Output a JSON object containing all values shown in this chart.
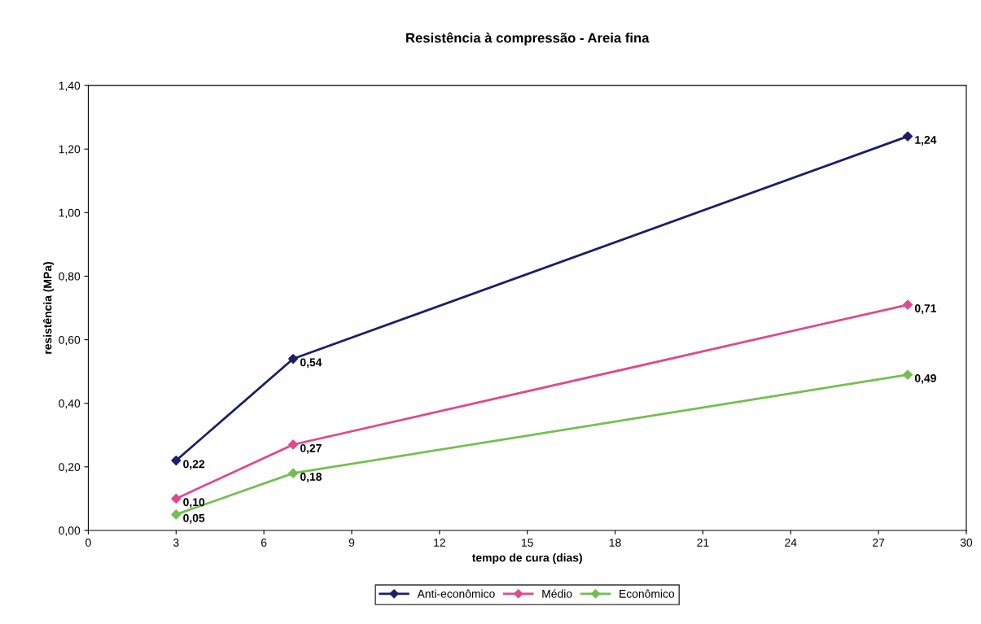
{
  "chart_data": {
    "type": "line",
    "title": "Resistência à compressão - Areia fina",
    "xlabel": "tempo de cura (dias)",
    "ylabel": "resistência (MPa)",
    "x": [
      3,
      7,
      28
    ],
    "series": [
      {
        "name": "Anti-econômico",
        "color": "#1c1f66",
        "values": [
          0.22,
          0.54,
          1.24
        ],
        "value_labels": [
          "0,22",
          "0,54",
          "1,24"
        ]
      },
      {
        "name": "Médio",
        "color": "#e0488e",
        "values": [
          0.1,
          0.27,
          0.71
        ],
        "value_labels": [
          "0,10",
          "0,27",
          "0,71"
        ]
      },
      {
        "name": "Econômico",
        "color": "#72c04e",
        "values": [
          0.05,
          0.18,
          0.49
        ],
        "value_labels": [
          "0,05",
          "0,18",
          "0,49"
        ]
      }
    ],
    "xlim": [
      0,
      30
    ],
    "xticks": [
      0,
      3,
      6,
      9,
      12,
      15,
      18,
      21,
      24,
      27,
      30
    ],
    "ylim": [
      0,
      1.4
    ],
    "yticks": [
      {
        "value": 0,
        "label": "0,00"
      },
      {
        "value": 0.2,
        "label": "0,20"
      },
      {
        "value": 0.4,
        "label": "0,40"
      },
      {
        "value": 0.6,
        "label": "0,60"
      },
      {
        "value": 0.8,
        "label": "0,80"
      },
      {
        "value": 1.0,
        "label": "1,00"
      },
      {
        "value": 1.2,
        "label": "1,20"
      },
      {
        "value": 1.4,
        "label": "1,40"
      }
    ],
    "marker": "diamond",
    "line_style": "solid",
    "grid": false,
    "legend": "bottom"
  }
}
